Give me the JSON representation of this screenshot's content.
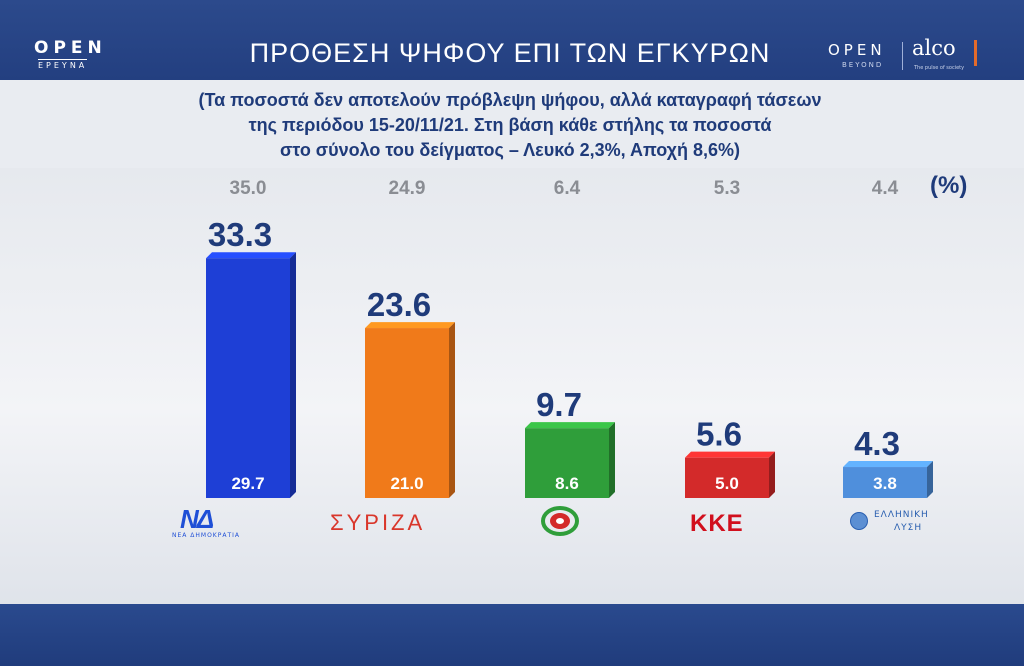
{
  "header": {
    "logo_left_top": "OPEN",
    "logo_left_sub": "ΕΡΕΥΝΑ",
    "title": "ΠΡΟΘΕΣΗ ΨΗΦΟΥ ΕΠΙ ΤΩΝ ΕΓΚΥΡΩΝ",
    "logo_right_open": "OPEN",
    "logo_right_beyond": "BEYOND",
    "logo_alco": "alco",
    "logo_alco_sub": "The pulse of society"
  },
  "subtitle_lines": [
    "(Τα ποσοστά δεν αποτελούν πρόβλεψη ψήφου, αλλά καταγραφή τάσεων",
    "της περιόδου 15-20/11/21.  Στη βάση κάθε στήλης τα ποσοστά",
    "στο σύνολο του δείγματος – Λευκό 2,3%, Αποχή 8,6%)"
  ],
  "unit_label": "(%)",
  "party_logos": {
    "nd": "ΝΔ",
    "nd_sub": "ΝΕΑ ΔΗΜΟΚΡΑΤΙΑ",
    "syriza": "ΣΥΡΙΖΑ",
    "kke": "ΚΚΕ",
    "el_line1": "ΕΛΛΗΝΙΚΗ",
    "el_line2": "ΛΥΣΗ"
  },
  "colors": {
    "header_bg": "#2c4a8c",
    "title_text": "#1f3b7a",
    "nd": "#1e3fd6",
    "syriza": "#f07a1a",
    "pasok": "#2f9e3a",
    "kke": "#d32a2a",
    "elliniki_lysi": "#4f8fdc"
  },
  "chart_data": {
    "type": "bar",
    "categories": [
      "ΝΔ",
      "ΣΥΡΙΖΑ",
      "ΚΙΝΑΛ",
      "ΚΚΕ",
      "ΕΛΛΗΝΙΚΗ ΛΥΣΗ"
    ],
    "series": [
      {
        "name": "previous",
        "values": [
          35.0,
          24.9,
          6.4,
          5.3,
          4.4
        ]
      },
      {
        "name": "valid_votes",
        "values": [
          33.3,
          23.6,
          9.7,
          5.6,
          4.3
        ]
      },
      {
        "name": "total_sample",
        "values": [
          29.7,
          21.0,
          8.6,
          5.0,
          3.8
        ]
      }
    ],
    "bar_colors": [
      "#1e3fd6",
      "#f07a1a",
      "#2f9e3a",
      "#d32a2a",
      "#4f8fdc"
    ],
    "ylim": [
      0,
      40
    ],
    "grid": false,
    "legend": "none"
  }
}
